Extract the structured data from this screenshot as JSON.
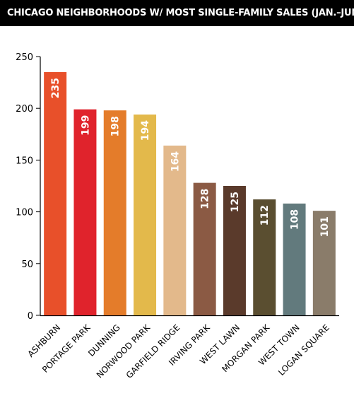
{
  "chart_data": {
    "type": "bar",
    "title": "CHICAGO NEIGHBORHOODS W/ MOST SINGLE-FAMILY SALES (JAN.–JUNE)",
    "xlabel": "",
    "ylabel": "",
    "ylim": [
      0,
      250
    ],
    "yticks": [
      0,
      50,
      100,
      150,
      200,
      250
    ],
    "grid": false,
    "categories": [
      "ASHBURN",
      "PORTAGE PARK",
      "DUNNING",
      "NORWOOD PARK",
      "GARFIELD RIDGE",
      "IRVING PARK",
      "WEST LAWN",
      "MORGAN PARK",
      "WEST TOWN",
      "LOGAN SQUARE"
    ],
    "values": [
      235,
      199,
      198,
      194,
      164,
      128,
      125,
      112,
      108,
      101
    ],
    "colors": [
      "#e8502a",
      "#e0232c",
      "#e47c2a",
      "#e3b94b",
      "#e3b98b",
      "#8b5a44",
      "#5a3a2b",
      "#5a4e30",
      "#627a7d",
      "#8a7c6a"
    ]
  }
}
